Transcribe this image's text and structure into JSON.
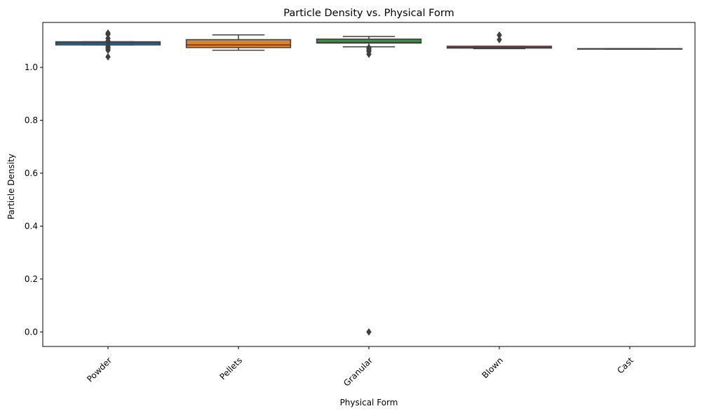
{
  "chart_data": {
    "type": "box",
    "title": "Particle Density vs. Physical Form",
    "xlabel": "Physical Form",
    "ylabel": "Particle Density",
    "ylim": [
      -0.055,
      1.17
    ],
    "yticks": [
      0.0,
      0.2,
      0.4,
      0.6,
      0.8,
      1.0
    ],
    "ytick_labels": [
      "0.0",
      "0.2",
      "0.4",
      "0.6",
      "0.8",
      "1.0"
    ],
    "xtick_rotation_deg": 45,
    "grid": false,
    "legend": "none",
    "categories": [
      "Powder",
      "Pellets",
      "Granular",
      "Blown",
      "Cast"
    ],
    "boxes": [
      {
        "category": "Powder",
        "color": "#3274a1",
        "whisker_low": 1.085,
        "q1": 1.085,
        "median": 1.092,
        "q3": 1.097,
        "whisker_high": 1.097,
        "outliers": [
          1.13,
          1.125,
          1.11,
          1.1,
          1.095,
          1.08,
          1.075,
          1.07,
          1.065,
          1.04
        ]
      },
      {
        "category": "Pellets",
        "color": "#e1812c",
        "whisker_low": 1.065,
        "q1": 1.075,
        "median": 1.085,
        "q3": 1.105,
        "whisker_high": 1.123,
        "outliers": []
      },
      {
        "category": "Granular",
        "color": "#3a923a",
        "whisker_low": 1.078,
        "q1": 1.092,
        "median": 1.094,
        "q3": 1.107,
        "whisker_high": 1.117,
        "outliers": [
          1.075,
          1.07,
          1.065,
          1.06,
          1.05,
          0.0
        ]
      },
      {
        "category": "Blown",
        "color": "#c03d3e",
        "whisker_low": 1.071,
        "q1": 1.073,
        "median": 1.075,
        "q3": 1.08,
        "whisker_high": 1.08,
        "outliers": [
          1.122,
          1.105
        ]
      },
      {
        "category": "Cast",
        "color": "#9372b2",
        "whisker_low": 1.069,
        "q1": 1.069,
        "median": 1.07,
        "q3": 1.071,
        "whisker_high": 1.071,
        "outliers": []
      }
    ]
  }
}
